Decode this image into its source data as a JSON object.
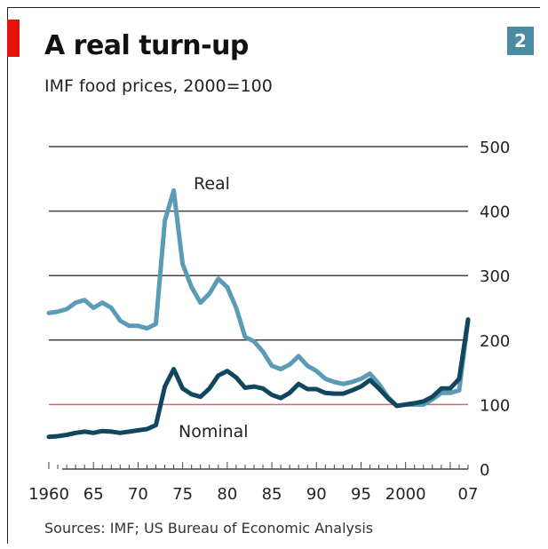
{
  "header": {
    "title": "A real turn-up",
    "subtitle": "IMF food prices, 2000=100",
    "badge": "2"
  },
  "footer": {
    "source": "Sources: IMF; US Bureau of Economic Analysis"
  },
  "colors": {
    "real": "#5b9bb5",
    "nominal": "#10465e",
    "grid": "#444444",
    "baseline": "#d06a6a",
    "accent": "#e3120b",
    "badge": "#4a8ba4"
  },
  "chart_data": {
    "type": "line",
    "title": "A real turn-up",
    "subtitle": "IMF food prices, 2000=100",
    "xlabel": "",
    "ylabel": "",
    "xlim": [
      1960,
      2007
    ],
    "ylim": [
      0,
      500
    ],
    "y_ticks": [
      0,
      100,
      200,
      300,
      400,
      500
    ],
    "x_tick_labels": [
      {
        "x": 1960,
        "label": "1960"
      },
      {
        "x": 1965,
        "label": "65"
      },
      {
        "x": 1970,
        "label": "70"
      },
      {
        "x": 1975,
        "label": "75"
      },
      {
        "x": 1980,
        "label": "80"
      },
      {
        "x": 1985,
        "label": "85"
      },
      {
        "x": 1990,
        "label": "90"
      },
      {
        "x": 1995,
        "label": "95"
      },
      {
        "x": 2000,
        "label": "2000"
      },
      {
        "x": 2007,
        "label": "07"
      }
    ],
    "reference_line": 100,
    "grid": true,
    "series": [
      {
        "name": "Real",
        "points": [
          [
            1960,
            242
          ],
          [
            1961,
            244
          ],
          [
            1962,
            248
          ],
          [
            1963,
            258
          ],
          [
            1964,
            262
          ],
          [
            1965,
            250
          ],
          [
            1966,
            258
          ],
          [
            1967,
            250
          ],
          [
            1968,
            230
          ],
          [
            1969,
            222
          ],
          [
            1970,
            222
          ],
          [
            1971,
            218
          ],
          [
            1972,
            225
          ],
          [
            1973,
            385
          ],
          [
            1974,
            432
          ],
          [
            1975,
            318
          ],
          [
            1976,
            282
          ],
          [
            1977,
            258
          ],
          [
            1978,
            272
          ],
          [
            1979,
            295
          ],
          [
            1980,
            282
          ],
          [
            1981,
            250
          ],
          [
            1982,
            205
          ],
          [
            1983,
            198
          ],
          [
            1984,
            182
          ],
          [
            1985,
            160
          ],
          [
            1986,
            155
          ],
          [
            1987,
            162
          ],
          [
            1988,
            175
          ],
          [
            1989,
            160
          ],
          [
            1990,
            152
          ],
          [
            1991,
            140
          ],
          [
            1992,
            135
          ],
          [
            1993,
            132
          ],
          [
            1994,
            135
          ],
          [
            1995,
            140
          ],
          [
            1996,
            148
          ],
          [
            1997,
            132
          ],
          [
            1998,
            112
          ],
          [
            1999,
            98
          ],
          [
            2000,
            100
          ],
          [
            2001,
            100
          ],
          [
            2002,
            100
          ],
          [
            2003,
            108
          ],
          [
            2004,
            118
          ],
          [
            2005,
            118
          ],
          [
            2006,
            122
          ],
          [
            2007,
            230
          ]
        ]
      },
      {
        "name": "Nominal",
        "points": [
          [
            1960,
            50
          ],
          [
            1961,
            51
          ],
          [
            1962,
            53
          ],
          [
            1963,
            56
          ],
          [
            1964,
            58
          ],
          [
            1965,
            56
          ],
          [
            1966,
            59
          ],
          [
            1967,
            58
          ],
          [
            1968,
            56
          ],
          [
            1969,
            58
          ],
          [
            1970,
            60
          ],
          [
            1971,
            62
          ],
          [
            1972,
            68
          ],
          [
            1973,
            128
          ],
          [
            1974,
            155
          ],
          [
            1975,
            125
          ],
          [
            1976,
            116
          ],
          [
            1977,
            112
          ],
          [
            1978,
            125
          ],
          [
            1979,
            145
          ],
          [
            1980,
            152
          ],
          [
            1981,
            142
          ],
          [
            1982,
            126
          ],
          [
            1983,
            128
          ],
          [
            1984,
            125
          ],
          [
            1985,
            115
          ],
          [
            1986,
            110
          ],
          [
            1987,
            118
          ],
          [
            1988,
            132
          ],
          [
            1989,
            124
          ],
          [
            1990,
            124
          ],
          [
            1991,
            118
          ],
          [
            1992,
            117
          ],
          [
            1993,
            117
          ],
          [
            1994,
            122
          ],
          [
            1995,
            128
          ],
          [
            1996,
            138
          ],
          [
            1997,
            125
          ],
          [
            1998,
            110
          ],
          [
            1999,
            98
          ],
          [
            2000,
            100
          ],
          [
            2001,
            102
          ],
          [
            2002,
            105
          ],
          [
            2003,
            112
          ],
          [
            2004,
            125
          ],
          [
            2005,
            125
          ],
          [
            2006,
            140
          ],
          [
            2007,
            232
          ]
        ]
      }
    ],
    "annotations": [
      {
        "text": "Real",
        "series": "Real"
      },
      {
        "text": "Nominal",
        "series": "Nominal"
      }
    ]
  }
}
